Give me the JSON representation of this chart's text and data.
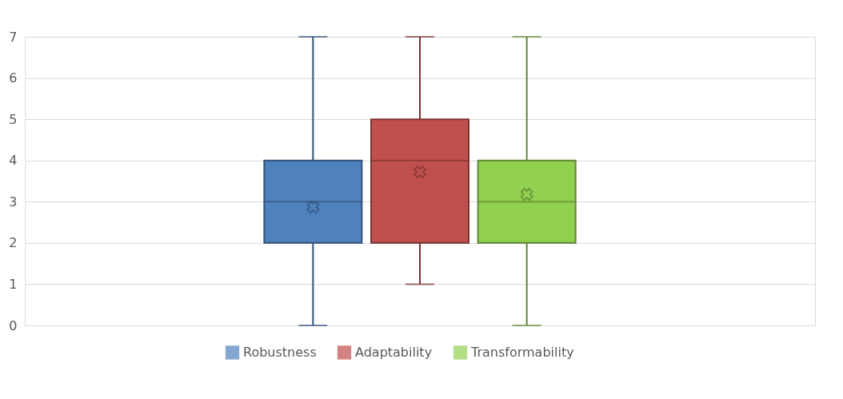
{
  "chart_data": {
    "type": "box",
    "categories": [
      null
    ],
    "series": [
      {
        "name": "Robustness",
        "color": "#4f81bd",
        "boxes": [
          {
            "low": 0,
            "q1": 2,
            "median": 3,
            "q3": 4,
            "high": 7,
            "mean": 2.87
          }
        ]
      },
      {
        "name": "Adaptability",
        "color": "#c0504d",
        "boxes": [
          {
            "low": 1,
            "q1": 2,
            "median": 4,
            "q3": 5,
            "high": 7,
            "mean": 3.72
          }
        ]
      },
      {
        "name": "Transformability",
        "color": "#92d050",
        "boxes": [
          {
            "low": 0,
            "q1": 2,
            "median": 3,
            "q3": 4,
            "high": 7,
            "mean": 3.18
          }
        ]
      }
    ],
    "ylim": [
      0,
      7
    ],
    "yticks": [
      0,
      1,
      2,
      3,
      4,
      5,
      6,
      7
    ],
    "grid": "y",
    "legend": "bottom"
  }
}
